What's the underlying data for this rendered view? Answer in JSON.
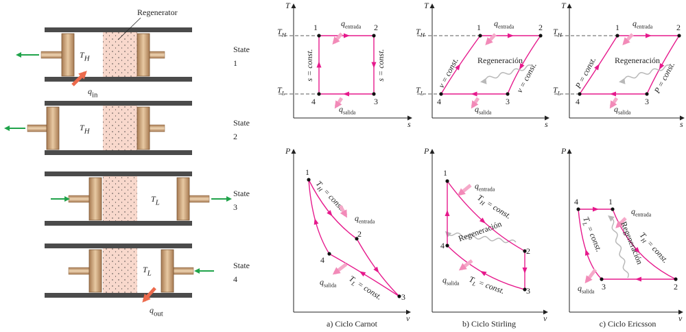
{
  "engine": {
    "regenerator": "Regenerator",
    "rows": [
      {
        "temp": {
          "main": "T",
          "sub": "H"
        },
        "state": "State",
        "number": "1"
      },
      {
        "temp": {
          "main": "T",
          "sub": "H"
        },
        "state": "State",
        "number": "2"
      },
      {
        "temp": {
          "main": "T",
          "sub": "L"
        },
        "state": "State",
        "number": "3"
      },
      {
        "temp": {
          "main": "T",
          "sub": "L"
        },
        "state": "State",
        "number": "4"
      }
    ],
    "q_in": {
      "main": "q",
      "sub": "in"
    },
    "q_out": {
      "main": "q",
      "sub": "out"
    }
  },
  "cycles": [
    {
      "caption": "a) Ciclo Carnot",
      "ts": {
        "y_axis": "T",
        "x_axis": "s",
        "t_high": {
          "main": "T",
          "sub": "H"
        },
        "t_low": {
          "main": "T",
          "sub": "L"
        },
        "points": [
          "1",
          "2",
          "3",
          "4"
        ],
        "q_in": {
          "main": "q",
          "sub": "entrada"
        },
        "q_out": {
          "main": "q",
          "sub": "salida"
        },
        "process_labels": [
          "s = const.",
          "s = const."
        ]
      },
      "pv": {
        "y_axis": "P",
        "x_axis": "v",
        "points": [
          "1",
          "2",
          "3",
          "4"
        ],
        "high": {
          "main": "T",
          "sub": "H",
          "rest": " = const."
        },
        "low": {
          "main": "T",
          "sub": "L",
          "rest": " = const."
        },
        "q_in": {
          "main": "q",
          "sub": "entrada"
        },
        "q_out": {
          "main": "q",
          "sub": "salida"
        }
      }
    },
    {
      "caption": "b) Ciclo Stirling",
      "ts": {
        "y_axis": "T",
        "x_axis": "s",
        "t_high": {
          "main": "T",
          "sub": "H"
        },
        "t_low": {
          "main": "T",
          "sub": "L"
        },
        "points": [
          "1",
          "2",
          "3",
          "4"
        ],
        "q_in": {
          "main": "q",
          "sub": "entrada"
        },
        "q_out": {
          "main": "q",
          "sub": "salida"
        },
        "process_labels": [
          "v = const.",
          "v = const."
        ],
        "regeneration": "Regeneración"
      },
      "pv": {
        "y_axis": "P",
        "x_axis": "v",
        "points": [
          "1",
          "2",
          "3",
          "4"
        ],
        "high": {
          "main": "T",
          "sub": "H",
          "rest": " = const."
        },
        "low": {
          "main": "T",
          "sub": "L",
          "rest": " = const."
        },
        "q_in": {
          "main": "q",
          "sub": "entrada"
        },
        "q_out": {
          "main": "q",
          "sub": "salida"
        },
        "regeneration": "Regeneración"
      }
    },
    {
      "caption": "c) Ciclo Ericsson",
      "ts": {
        "y_axis": "T",
        "x_axis": "s",
        "t_high": {
          "main": "T",
          "sub": "H"
        },
        "t_low": {
          "main": "T",
          "sub": "L"
        },
        "points": [
          "1",
          "2",
          "3",
          "4"
        ],
        "q_in": {
          "main": "q",
          "sub": "entrada"
        },
        "q_out": {
          "main": "q",
          "sub": "salida"
        },
        "process_labels": [
          "P = const.",
          "P = const."
        ],
        "regeneration": "Regeneración"
      },
      "pv": {
        "y_axis": "P",
        "x_axis": "v",
        "points": [
          "1",
          "2",
          "3",
          "4"
        ],
        "high": {
          "main": "T",
          "sub": "H",
          "rest": " = const."
        },
        "low": {
          "main": "T",
          "sub": "L",
          "rest": " = const."
        },
        "q_in": {
          "main": "q",
          "sub": "entrada"
        },
        "q_out": {
          "main": "q",
          "sub": "salida"
        },
        "regeneration": "Regeneración"
      }
    }
  ]
}
